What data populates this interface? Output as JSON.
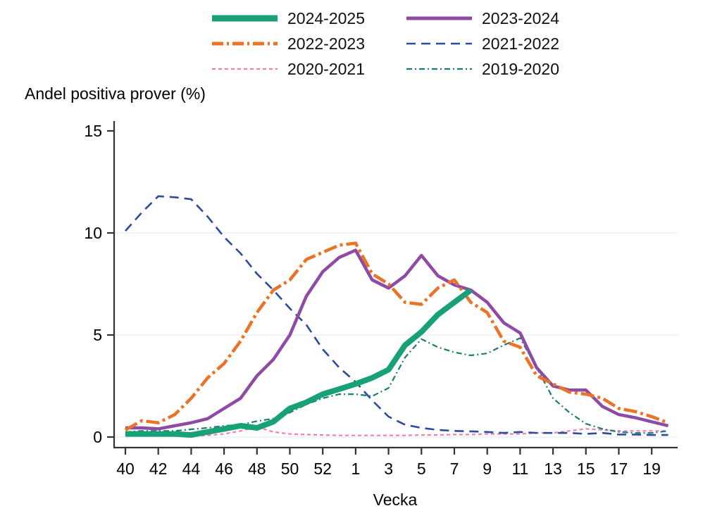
{
  "legend": {
    "items": [
      {
        "label": "2024-2025",
        "color": "#18a077",
        "width": 9,
        "dash": ""
      },
      {
        "label": "2023-2024",
        "color": "#8e4aa5",
        "width": 5,
        "dash": ""
      },
      {
        "label": "2022-2023",
        "color": "#ec7225",
        "width": 5,
        "dash": "16 5 3 5"
      },
      {
        "label": "2021-2022",
        "color": "#2d4b9e",
        "width": 2.6,
        "dash": "13 8"
      },
      {
        "label": "2020-2021",
        "color": "#ef7db8",
        "width": 2.2,
        "dash": "5 4"
      },
      {
        "label": "2019-2020",
        "color": "#1d7c73",
        "width": 2.2,
        "dash": "8 4 2 4"
      }
    ]
  },
  "chart_data": {
    "type": "line",
    "title": "",
    "y_label": "Andel positiva prover (%)",
    "x_label": "Vecka",
    "ylim": [
      0,
      15
    ],
    "y_ticks": [
      0,
      5,
      10,
      15
    ],
    "grid_values": [
      0,
      5,
      10
    ],
    "grid_color": "#e4edf2",
    "axis_color": "#333333",
    "weeks": [
      "40",
      "41",
      "42",
      "43",
      "44",
      "45",
      "46",
      "47",
      "48",
      "49",
      "50",
      "51",
      "52",
      "53",
      "1",
      "2",
      "3",
      "4",
      "5",
      "6",
      "7",
      "8",
      "9",
      "10",
      "11",
      "12",
      "13",
      "14",
      "15",
      "16",
      "17",
      "18",
      "19",
      "20"
    ],
    "x_tick_labels": [
      "40",
      "42",
      "44",
      "46",
      "48",
      "50",
      "52",
      "1",
      "3",
      "5",
      "7",
      "9",
      "11",
      "13",
      "15",
      "17",
      "19"
    ],
    "legend_position": "top",
    "series": [
      {
        "name": "2020-2021",
        "color": "#ef7db8",
        "width": 2.2,
        "dash": "5 4",
        "values": [
          0.2,
          0.25,
          0.1,
          0.05,
          0.05,
          0.08,
          0.15,
          0.3,
          0.5,
          0.25,
          0.15,
          0.12,
          0.1,
          0.08,
          0.08,
          0.08,
          0.08,
          0.08,
          0.1,
          0.1,
          0.12,
          0.12,
          0.15,
          0.15,
          0.15,
          0.2,
          0.2,
          0.3,
          0.4,
          0.35,
          0.3,
          0.3,
          0.3,
          0.3
        ]
      },
      {
        "name": "2021-2022",
        "color": "#2d4b9e",
        "width": 2.6,
        "dash": "13 8",
        "values": [
          10.1,
          11.0,
          11.8,
          11.75,
          11.65,
          10.8,
          9.8,
          9.0,
          8.0,
          7.2,
          6.3,
          5.5,
          4.3,
          3.4,
          2.7,
          1.8,
          1.0,
          0.6,
          0.45,
          0.35,
          0.3,
          0.28,
          0.25,
          0.2,
          0.25,
          0.2,
          0.2,
          0.2,
          0.15,
          0.2,
          0.12,
          0.12,
          0.1,
          0.1
        ]
      },
      {
        "name": "2019-2020",
        "color": "#1d7c73",
        "width": 2.2,
        "dash": "8 4 2 4",
        "values": [
          0.25,
          0.3,
          0.3,
          0.3,
          0.38,
          0.45,
          0.55,
          0.6,
          0.78,
          0.9,
          1.2,
          1.6,
          1.9,
          2.1,
          2.1,
          2.0,
          2.4,
          3.9,
          4.8,
          4.4,
          4.15,
          4.0,
          4.1,
          4.5,
          4.85,
          3.4,
          1.9,
          1.2,
          0.65,
          0.4,
          0.25,
          0.2,
          0.2,
          0.3
        ]
      },
      {
        "name": "2023-2024",
        "color": "#8e4aa5",
        "width": 4.5,
        "dash": "",
        "values": [
          0.45,
          0.45,
          0.4,
          0.55,
          0.7,
          0.9,
          1.4,
          1.9,
          3.0,
          3.8,
          5.0,
          6.9,
          8.1,
          8.8,
          9.15,
          7.7,
          7.3,
          7.9,
          8.9,
          7.9,
          7.45,
          7.2,
          6.6,
          5.6,
          5.1,
          3.4,
          2.5,
          2.3,
          2.3,
          1.5,
          1.1,
          0.95,
          0.75,
          0.55
        ]
      },
      {
        "name": "2022-2023",
        "color": "#ec7225",
        "width": 4.5,
        "dash": "19 5 4 5",
        "values": [
          0.35,
          0.8,
          0.7,
          1.1,
          1.9,
          2.9,
          3.6,
          4.7,
          6.1,
          7.2,
          7.7,
          8.7,
          9.05,
          9.4,
          9.5,
          8.0,
          7.5,
          6.6,
          6.5,
          7.3,
          7.7,
          6.6,
          6.1,
          4.7,
          4.4,
          3.0,
          2.6,
          2.2,
          2.1,
          1.9,
          1.4,
          1.25,
          1.0,
          0.7
        ]
      },
      {
        "name": "2024-2025",
        "color": "#18a077",
        "width": 8,
        "dash": "",
        "values": [
          0.15,
          0.15,
          0.15,
          0.15,
          0.1,
          0.25,
          0.4,
          0.55,
          0.45,
          0.75,
          1.4,
          1.7,
          2.1,
          2.35,
          2.6,
          2.9,
          3.3,
          4.5,
          5.15,
          6.0,
          6.6,
          7.2,
          null,
          null,
          null,
          null,
          null,
          null,
          null,
          null,
          null,
          null,
          null,
          null
        ]
      }
    ]
  }
}
